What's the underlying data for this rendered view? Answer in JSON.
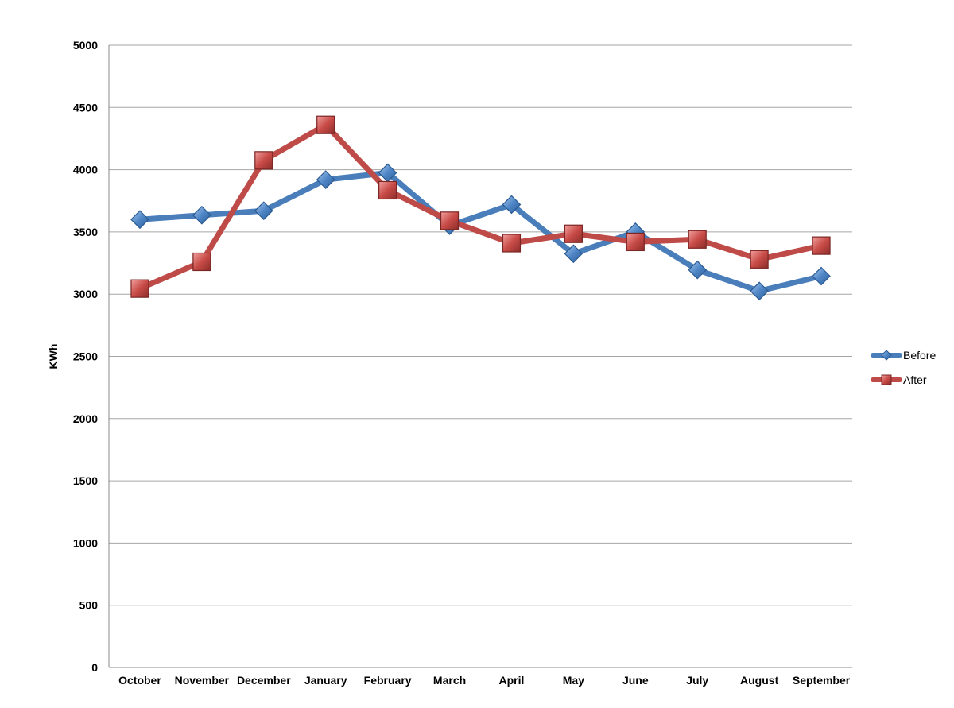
{
  "chart_data": {
    "type": "line",
    "title": "",
    "xlabel": "",
    "ylabel": "KWh",
    "categories": [
      "October",
      "November",
      "December",
      "January",
      "February",
      "March",
      "April",
      "May",
      "June",
      "July",
      "August",
      "September"
    ],
    "ylim": [
      0,
      5000
    ],
    "yticks": [
      0,
      500,
      1000,
      1500,
      2000,
      2500,
      3000,
      3500,
      4000,
      4500,
      5000
    ],
    "grid": true,
    "legend_position": "right",
    "series": [
      {
        "name": "Before",
        "color": "#4a7ebb",
        "marker": "diamond",
        "values": [
          3600,
          3635,
          3670,
          3920,
          3975,
          3550,
          3720,
          3325,
          3500,
          3195,
          3025,
          3145
        ]
      },
      {
        "name": "After",
        "color": "#be4b48",
        "marker": "square",
        "values": [
          3045,
          3260,
          4075,
          4360,
          3835,
          3590,
          3410,
          3485,
          3420,
          3440,
          3280,
          3390
        ]
      }
    ]
  }
}
